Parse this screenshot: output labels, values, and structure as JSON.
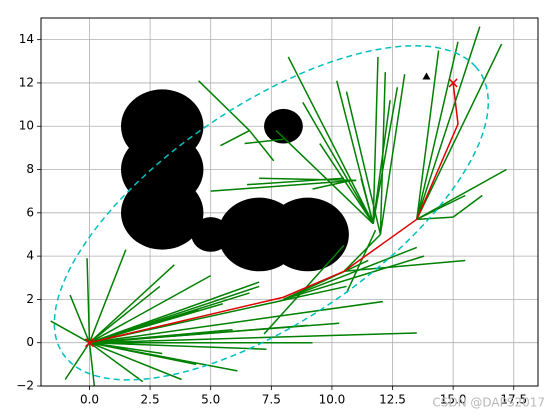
{
  "chart_data": {
    "type": "path-planning",
    "xlim": [
      -2.0,
      18.5
    ],
    "ylim": [
      -2,
      15
    ],
    "xticks": [
      {
        "value": 0,
        "label": "0.0"
      },
      {
        "value": 2.5,
        "label": "2.5"
      },
      {
        "value": 5,
        "label": "5.0"
      },
      {
        "value": 7.5,
        "label": "7.5"
      },
      {
        "value": 10,
        "label": "10.0"
      },
      {
        "value": 12.5,
        "label": "12.5"
      },
      {
        "value": 15,
        "label": "15.0"
      },
      {
        "value": 17.5,
        "label": "17.5"
      }
    ],
    "yticks": [
      {
        "value": -2,
        "label": "−2"
      },
      0,
      2,
      4,
      6,
      8,
      10,
      12,
      14
    ],
    "grid": true,
    "obstacles": {
      "color": "#000000",
      "circles": [
        [
          3,
          10,
          1.7
        ],
        [
          3,
          8,
          1.7
        ],
        [
          3,
          6,
          1.7
        ],
        [
          5,
          5,
          0.8
        ],
        [
          7,
          5,
          1.7
        ],
        [
          9,
          5,
          1.7
        ],
        [
          8,
          10,
          0.8
        ]
      ]
    },
    "tree": {
      "color": "#008000",
      "edges": [
        [
          0,
          0,
          -0.1,
          3.9
        ],
        [
          0,
          0,
          -1.6,
          1.0
        ],
        [
          0,
          0,
          -1.0,
          -1.7
        ],
        [
          0,
          0,
          0.2,
          -2.0
        ],
        [
          0,
          0,
          1.5,
          4.3
        ],
        [
          0,
          0,
          -0.8,
          2.2
        ],
        [
          0,
          0,
          3.5,
          3.6
        ],
        [
          0,
          0,
          2.9,
          2.6
        ],
        [
          0,
          0,
          5.0,
          3.1
        ],
        [
          0,
          0,
          7.0,
          2.8
        ],
        [
          0,
          0,
          7.0,
          2.6
        ],
        [
          0,
          0,
          5.9,
          0.6
        ],
        [
          0,
          0,
          9.0,
          0.8
        ],
        [
          0,
          0,
          10.3,
          0.9
        ],
        [
          0,
          0,
          13.5,
          0.45
        ],
        [
          0,
          0,
          7.3,
          -0.3
        ],
        [
          0,
          0,
          9.2,
          0.0
        ],
        [
          0,
          0,
          6.1,
          -1.3
        ],
        [
          0,
          0,
          3.8,
          -1.7
        ],
        [
          0,
          0,
          4.4,
          -1.0
        ],
        [
          0,
          0,
          2.2,
          -1.8
        ],
        [
          0,
          0,
          6.6,
          2.3
        ],
        [
          0,
          0,
          4.5,
          1.5
        ],
        [
          0,
          0,
          3.0,
          -0.5
        ],
        [
          0,
          0,
          10.6,
          2.6
        ],
        [
          0,
          0,
          12.1,
          1.9
        ],
        [
          0,
          0,
          5.5,
          1.8
        ],
        [
          8,
          2,
          11.5,
          3.8
        ],
        [
          8,
          2,
          13.8,
          4.0
        ],
        [
          8,
          2,
          13.5,
          4.4
        ],
        [
          10.5,
          3.3,
          15.5,
          3.8
        ],
        [
          10.5,
          3.3,
          12,
          5
        ],
        [
          10.6,
          2.3,
          11.8,
          5.2
        ],
        [
          7.2,
          0.4,
          10.5,
          4.5
        ],
        [
          11.7,
          5.5,
          8.8,
          11.1
        ],
        [
          11.7,
          5.5,
          8.2,
          13.2
        ],
        [
          11.7,
          5.5,
          11.9,
          13.2
        ],
        [
          11.7,
          5.5,
          12.7,
          11.8
        ],
        [
          11.7,
          5.5,
          7.7,
          9.8
        ],
        [
          11.7,
          5.5,
          10.2,
          12.1
        ],
        [
          11.7,
          5.5,
          9.5,
          9.2
        ],
        [
          11.7,
          5.5,
          11.2,
          7.6
        ],
        [
          11.7,
          5.5,
          12.4,
          11.2
        ],
        [
          12,
          5,
          12.2,
          12.5
        ],
        [
          12,
          5,
          13.0,
          12.4
        ],
        [
          12,
          5,
          10.6,
          11.6
        ],
        [
          13.5,
          5.7,
          14.4,
          13.5
        ],
        [
          13.5,
          5.7,
          15.2,
          13.9
        ],
        [
          13.5,
          5.7,
          16.1,
          14.6
        ],
        [
          13.5,
          5.7,
          17.0,
          13.8
        ],
        [
          13.5,
          5.7,
          17.2,
          8.0
        ],
        [
          13.5,
          5.7,
          15.0,
          5.8
        ],
        [
          15,
          5.8,
          16.2,
          6.8
        ],
        [
          13.5,
          5.7,
          15.5,
          6.8
        ],
        [
          4.5,
          12.1,
          6.6,
          9.8
        ],
        [
          6.6,
          9.8,
          5.4,
          9.1
        ],
        [
          6.6,
          9.8,
          7.6,
          8.4
        ],
        [
          6.4,
          9.2,
          8.0,
          9.4
        ],
        [
          5.0,
          7.0,
          11.0,
          7.5
        ],
        [
          6.5,
          7.3,
          10.5,
          7.6
        ],
        [
          7.0,
          7.6,
          11.0,
          7.5
        ],
        [
          9.2,
          7.1,
          10.8,
          7.5
        ]
      ]
    },
    "path": {
      "color": "#e00000",
      "x": [
        0,
        8.0,
        10.5,
        13.5,
        15.2,
        15.0
      ],
      "y": [
        0,
        2.1,
        3.3,
        5.7,
        10.1,
        12.0
      ]
    },
    "ellipse": {
      "color": "#00bfbf",
      "center": [
        7.5,
        6.0
      ],
      "a": 10.8,
      "b": 4.8,
      "angle": 38.66
    },
    "start": [
      0,
      0
    ],
    "goal": [
      15,
      12
    ],
    "target": [
      13.9,
      12.3
    ],
    "watermark": "CSDN @DAPS2017"
  }
}
